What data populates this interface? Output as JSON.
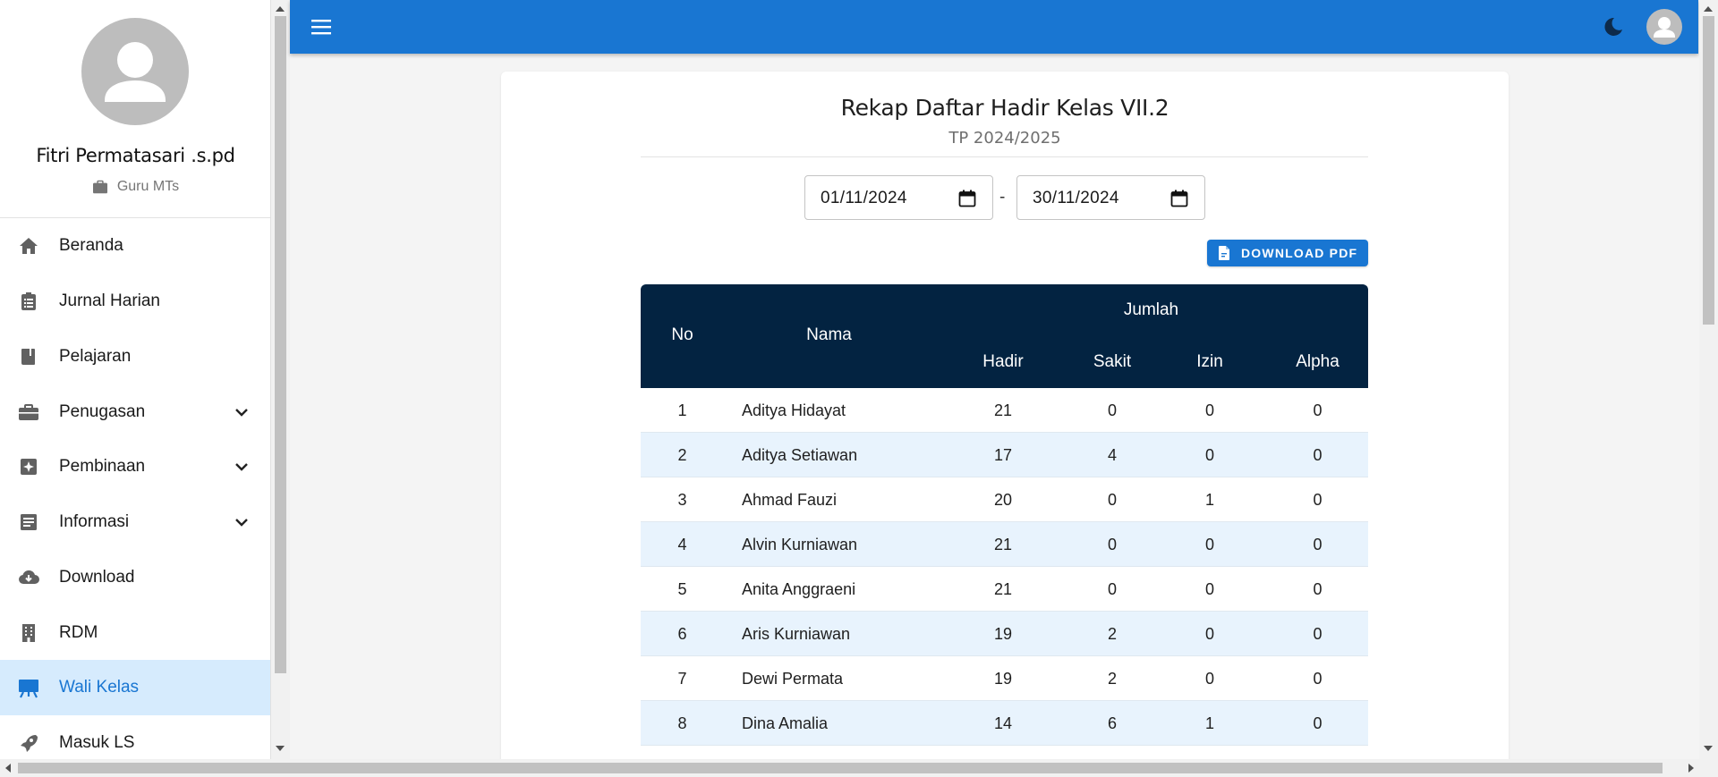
{
  "profile": {
    "name": "Fitri Permatasari .s.pd",
    "role": "Guru MTs"
  },
  "nav": [
    {
      "label": "Beranda",
      "icon": "home-icon",
      "expandable": false,
      "active": false
    },
    {
      "label": "Jurnal Harian",
      "icon": "clipboard-icon",
      "expandable": false,
      "active": false
    },
    {
      "label": "Pelajaran",
      "icon": "book-icon",
      "expandable": false,
      "active": false
    },
    {
      "label": "Penugasan",
      "icon": "briefcase-icon",
      "expandable": true,
      "active": false
    },
    {
      "label": "Pembinaan",
      "icon": "sparkle-box-icon",
      "expandable": true,
      "active": false
    },
    {
      "label": "Informasi",
      "icon": "news-icon",
      "expandable": true,
      "active": false
    },
    {
      "label": "Download",
      "icon": "cloud-download-icon",
      "expandable": false,
      "active": false
    },
    {
      "label": "RDM",
      "icon": "building-icon",
      "expandable": false,
      "active": false
    },
    {
      "label": "Wali Kelas",
      "icon": "easel-icon",
      "expandable": false,
      "active": true
    },
    {
      "label": "Masuk LS",
      "icon": "rocket-icon",
      "expandable": false,
      "active": false
    }
  ],
  "appbar": {
    "color": "#1976d2",
    "icons": [
      "menu-icon",
      "moon-icon",
      "account-icon"
    ]
  },
  "report": {
    "title": "Rekap Daftar Hadir Kelas VII.2",
    "subtitle": "TP 2024/2025",
    "start_date": "01/11/2024",
    "end_date": "30/11/2024",
    "date_separator": "-",
    "download_label": "DOWNLOAD PDF"
  },
  "table": {
    "header_color": "#032341",
    "col_no": "No",
    "col_nama": "Nama",
    "col_jumlah": "Jumlah",
    "col_hadir": "Hadir",
    "col_sakit": "Sakit",
    "col_izin": "Izin",
    "col_alpha": "Alpha",
    "rows": [
      {
        "no": "1",
        "nama": "Aditya Hidayat",
        "hadir": "21",
        "sakit": "0",
        "izin": "0",
        "alpha": "0"
      },
      {
        "no": "2",
        "nama": "Aditya Setiawan",
        "hadir": "17",
        "sakit": "4",
        "izin": "0",
        "alpha": "0"
      },
      {
        "no": "3",
        "nama": "Ahmad Fauzi",
        "hadir": "20",
        "sakit": "0",
        "izin": "1",
        "alpha": "0"
      },
      {
        "no": "4",
        "nama": "Alvin Kurniawan",
        "hadir": "21",
        "sakit": "0",
        "izin": "0",
        "alpha": "0"
      },
      {
        "no": "5",
        "nama": "Anita Anggraeni",
        "hadir": "21",
        "sakit": "0",
        "izin": "0",
        "alpha": "0"
      },
      {
        "no": "6",
        "nama": "Aris Kurniawan",
        "hadir": "19",
        "sakit": "2",
        "izin": "0",
        "alpha": "0"
      },
      {
        "no": "7",
        "nama": "Dewi Permata",
        "hadir": "19",
        "sakit": "2",
        "izin": "0",
        "alpha": "0"
      },
      {
        "no": "8",
        "nama": "Dina Amalia",
        "hadir": "14",
        "sakit": "6",
        "izin": "1",
        "alpha": "0"
      }
    ]
  }
}
